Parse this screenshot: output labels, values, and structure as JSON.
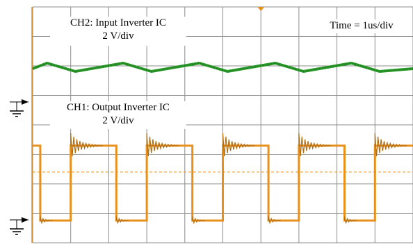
{
  "labels": {
    "ch2_name": "CH2: Input Inverter IC",
    "ch2_scale": "2 V/div",
    "ch1_name": "CH1: Output Inverter IC",
    "ch1_scale": "2 V/div",
    "timebase": "Time = 1us/div"
  },
  "colors": {
    "grid": "#8c8c8c",
    "ch1": "#e8901c",
    "ch2": "#2a9a2a",
    "background": "#ffffff",
    "ground_marker": "#000000"
  },
  "icons": [
    "ground-icon",
    "channel-marker-icon",
    "trigger-marker-icon"
  ],
  "chart_data": {
    "type": "line",
    "title": "",
    "xlabel": "",
    "ylabel": "",
    "grid": true,
    "x_unit": "us",
    "xlim": [
      0,
      10
    ],
    "series": [
      {
        "name": "CH2: Input Inverter IC",
        "description": "sawtooth-like input waveform",
        "x": [
          0,
          0.38,
          1.12,
          2.38,
          3.12,
          4.38,
          5.12,
          6.38,
          7.12,
          8.38,
          9.12,
          10
        ],
        "y": [
          0,
          0.2,
          -0.1,
          0.2,
          -0.1,
          0.2,
          -0.1,
          0.2,
          -0.1,
          0.2,
          -0.1,
          0
        ]
      },
      {
        "name": "CH1: Output Inverter IC",
        "description": "square wave with ringing on rising edges",
        "x": [
          0,
          0.2,
          0.2,
          1.0,
          1.0,
          2.2,
          2.2,
          3.0,
          3.0,
          4.2,
          4.2,
          5.0,
          5.0,
          6.2,
          6.2,
          7.0,
          7.0,
          8.2,
          8.2,
          9.0,
          9.0,
          10
        ],
        "y": [
          3.9,
          3.9,
          0,
          0,
          3.9,
          3.9,
          0,
          0,
          3.9,
          3.9,
          0,
          0,
          3.9,
          3.9,
          0,
          0,
          3.9,
          3.9,
          0,
          0,
          3.9,
          3.9
        ]
      }
    ]
  }
}
